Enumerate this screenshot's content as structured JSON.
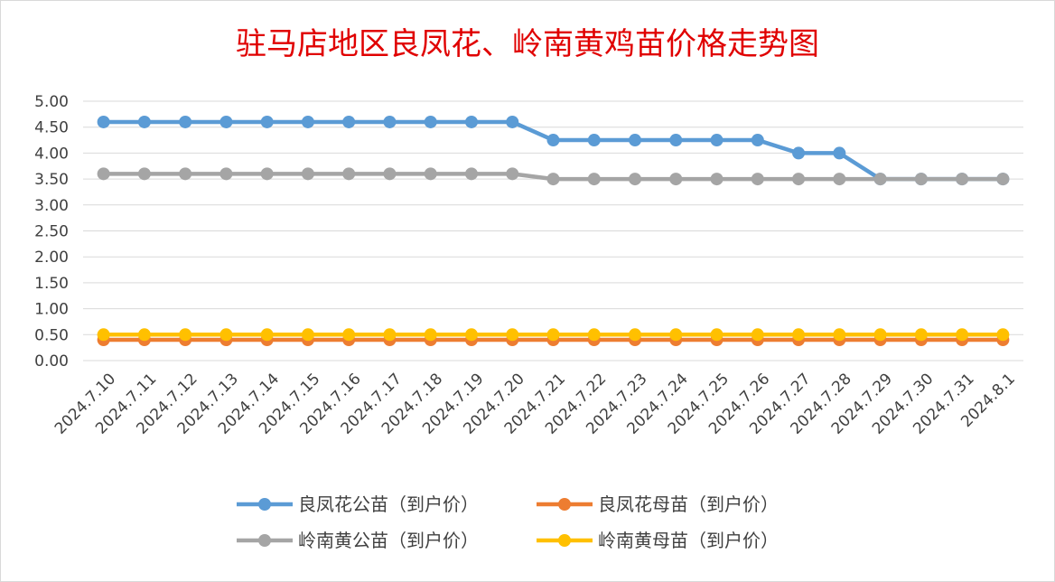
{
  "chart_data": {
    "type": "line",
    "title": "驻马店地区良凤花、岭南黄鸡苗价格走势图",
    "categories": [
      "2024.7.10",
      "2024.7.11",
      "2024.7.12",
      "2024.7.13",
      "2024.7.14",
      "2024.7.15",
      "2024.7.16",
      "2024.7.17",
      "2024.7.18",
      "2024.7.19",
      "2024.7.20",
      "2024.7.21",
      "2024.7.22",
      "2024.7.23",
      "2024.7.24",
      "2024.7.25",
      "2024.7.26",
      "2024.7.27",
      "2024.7.28",
      "2024.7.29",
      "2024.7.30",
      "2024.7.31",
      "2024.8.1"
    ],
    "y_ticks": [
      "0.00",
      "0.50",
      "1.00",
      "1.50",
      "2.00",
      "2.50",
      "3.00",
      "3.50",
      "4.00",
      "4.50",
      "5.00"
    ],
    "ylim": [
      0,
      5
    ],
    "grid": true,
    "legend_position": "bottom",
    "series": [
      {
        "name": "良凤花公苗（到户价）",
        "color": "#5b9bd5",
        "values": [
          4.6,
          4.6,
          4.6,
          4.6,
          4.6,
          4.6,
          4.6,
          4.6,
          4.6,
          4.6,
          4.6,
          4.25,
          4.25,
          4.25,
          4.25,
          4.25,
          4.25,
          4.0,
          4.0,
          3.5,
          3.5,
          3.5,
          3.5
        ]
      },
      {
        "name": "良凤花母苗（到户价）",
        "color": "#ed7d31",
        "values": [
          0.4,
          0.4,
          0.4,
          0.4,
          0.4,
          0.4,
          0.4,
          0.4,
          0.4,
          0.4,
          0.4,
          0.4,
          0.4,
          0.4,
          0.4,
          0.4,
          0.4,
          0.4,
          0.4,
          0.4,
          0.4,
          0.4,
          0.4
        ]
      },
      {
        "name": "岭南黄公苗（到户价）",
        "color": "#a5a5a5",
        "values": [
          3.6,
          3.6,
          3.6,
          3.6,
          3.6,
          3.6,
          3.6,
          3.6,
          3.6,
          3.6,
          3.6,
          3.5,
          3.5,
          3.5,
          3.5,
          3.5,
          3.5,
          3.5,
          3.5,
          3.5,
          3.5,
          3.5,
          3.5
        ]
      },
      {
        "name": "岭南黄母苗（到户价）",
        "color": "#ffc000",
        "values": [
          0.5,
          0.5,
          0.5,
          0.5,
          0.5,
          0.5,
          0.5,
          0.5,
          0.5,
          0.5,
          0.5,
          0.5,
          0.5,
          0.5,
          0.5,
          0.5,
          0.5,
          0.5,
          0.5,
          0.5,
          0.5,
          0.5,
          0.5
        ]
      }
    ]
  }
}
